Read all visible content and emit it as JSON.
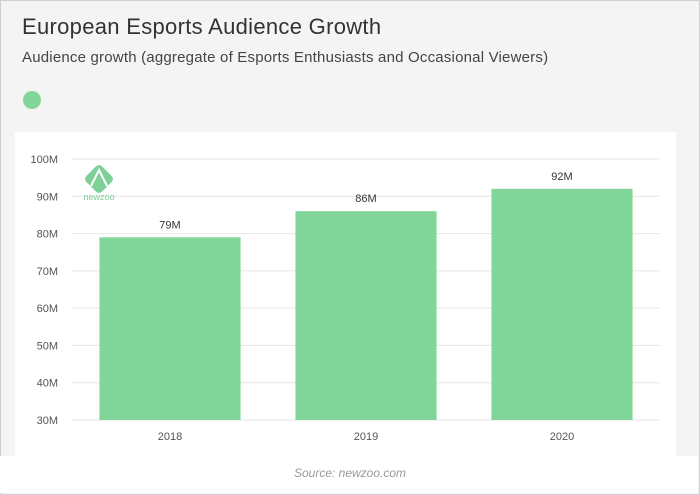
{
  "header": {
    "title": "European Esports Audience Growth",
    "subtitle": "Audience growth (aggregate of Esports Enthusiasts and Occasional Viewers)"
  },
  "logo": {
    "text": "newzoo"
  },
  "source": "Source: newzoo.com",
  "colors": {
    "bar": "#82d598",
    "logo": "#7fd096",
    "grid": "#e6e6e6"
  },
  "chart_data": {
    "type": "bar",
    "title": "European Esports Audience Growth",
    "subtitle": "Audience growth (aggregate of Esports Enthusiasts and Occasional Viewers)",
    "categories": [
      "2018",
      "2019",
      "2020"
    ],
    "values": [
      79,
      86,
      92
    ],
    "value_labels": [
      "79M",
      "86M",
      "92M"
    ],
    "xlabel": "",
    "ylabel": "",
    "ylim": [
      30,
      100
    ],
    "yticks": [
      30,
      40,
      50,
      60,
      70,
      80,
      90,
      100
    ],
    "ytick_labels": [
      "30M",
      "40M",
      "50M",
      "60M",
      "70M",
      "80M",
      "90M",
      "100M"
    ],
    "grid": true,
    "legend": "top-left"
  }
}
